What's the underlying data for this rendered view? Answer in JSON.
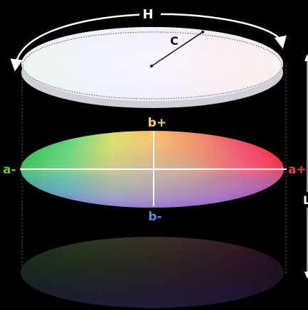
{
  "labels": {
    "hue": "H",
    "chroma": "C",
    "b_plus": "b+",
    "b_minus": "b-",
    "a_minus": "a-",
    "a_plus": "a+",
    "lightness": "L"
  },
  "colors": {
    "background": "#000000",
    "hue_label": "#ffffff",
    "chroma_label": "#111111",
    "b_plus": "#f1d36a",
    "b_minus": "#5b8fd6",
    "a_minus": "#6cc04a",
    "a_plus": "#e8423a",
    "lightness_label": "#ffffff",
    "axis_lines": "#ffffff"
  }
}
